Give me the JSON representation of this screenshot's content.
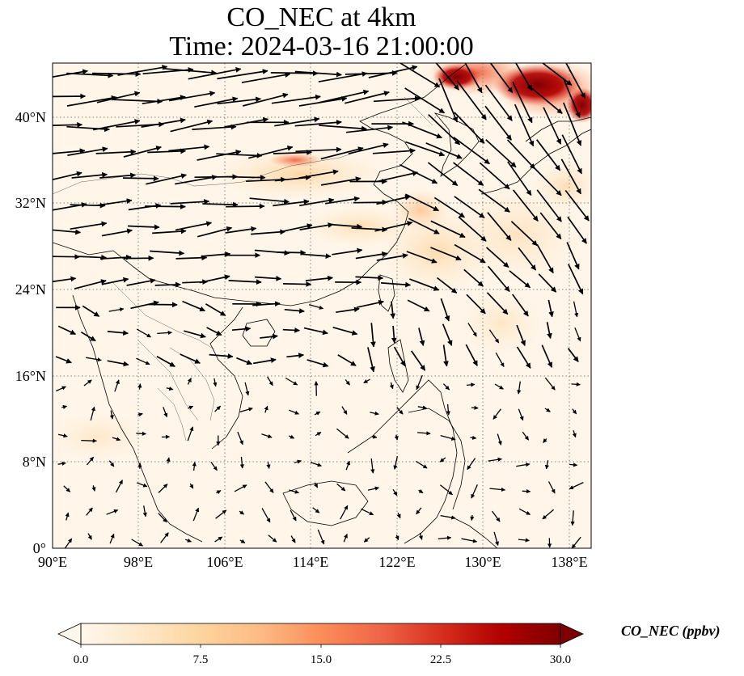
{
  "map": {
    "title": "CO_NEC at 4km",
    "subtitle": "Time: 2024-03-16 21:00:00",
    "variable": "CO_NEC",
    "level": "4km",
    "time": "2024-03-16 21:00:00",
    "extent": {
      "lon_min": 90,
      "lon_max": 140,
      "lat_min": 0,
      "lat_max": 45
    },
    "lon_ticks": [
      "90°E",
      "98°E",
      "106°E",
      "114°E",
      "122°E",
      "130°E",
      "138°E"
    ],
    "lat_ticks": [
      "0°",
      "8°N",
      "16°N",
      "24°N",
      "32°N",
      "40°N"
    ],
    "gridlines": "dotted gray",
    "field_description": "Mostly low CO concentration; highs in the northeast (Korea / Japan Sea), moderate plume over north-central China and East China Sea",
    "wind_arrows": "black vectors; strong westerlies north of 24°N, weak/variable winds in the south"
  },
  "colorbar": {
    "label": "CO_NEC (ppbv)",
    "ticks": [
      "0.0",
      "7.5",
      "15.0",
      "22.5",
      "30.0"
    ],
    "min": 0,
    "max": 30,
    "colormap": "OrRd",
    "colors": [
      "#fff7ec",
      "#fee8c8",
      "#fdd49e",
      "#fdbb84",
      "#fc8d59",
      "#ef6548",
      "#d7301f",
      "#b30000",
      "#7f0000"
    ],
    "extend": "both"
  }
}
